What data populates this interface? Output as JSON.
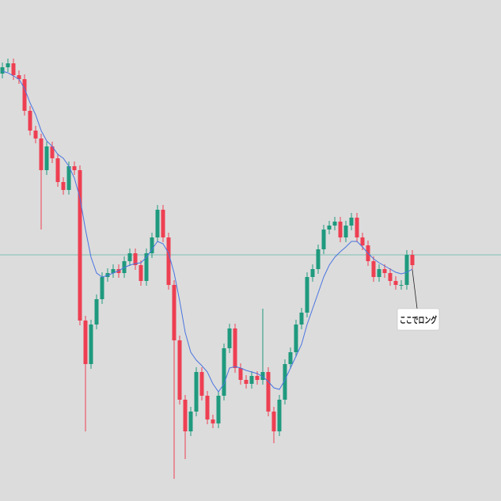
{
  "chart_data": {
    "type": "candlestick",
    "ylim": [
      0,
      633
    ],
    "colors": {
      "up": "#1f9a7e",
      "down": "#ee3f52",
      "ma": "#4a74e0",
      "hline": "#5fb8a8"
    },
    "open": [
      540,
      548,
      553,
      538,
      533,
      493,
      468,
      458,
      418,
      448,
      433,
      403,
      393,
      423,
      418,
      228,
      173,
      223,
      255,
      283,
      288,
      293,
      288,
      303,
      313,
      298,
      278,
      313,
      333,
      368,
      333,
      273,
      203,
      128,
      88,
      113,
      163,
      133,
      103,
      98,
      133,
      193,
      218,
      168,
      153,
      148,
      158,
      153,
      163,
      113,
      88,
      128,
      173,
      188,
      223,
      238,
      283,
      293,
      318,
      343,
      348,
      353,
      333,
      348,
      358,
      333,
      323,
      303,
      283,
      293,
      288,
      278,
      273,
      273,
      311
    ],
    "high": [
      554,
      559,
      559,
      544,
      539,
      499,
      474,
      464,
      454,
      454,
      439,
      409,
      429,
      429,
      424,
      234,
      229,
      261,
      289,
      294,
      299,
      299,
      309,
      319,
      319,
      304,
      319,
      339,
      374,
      374,
      339,
      279,
      209,
      134,
      119,
      169,
      169,
      139,
      109,
      139,
      199,
      224,
      224,
      174,
      159,
      164,
      164,
      243,
      169,
      119,
      134,
      179,
      194,
      229,
      244,
      289,
      299,
      324,
      349,
      354,
      359,
      359,
      354,
      364,
      364,
      339,
      329,
      309,
      299,
      299,
      294,
      284,
      279,
      317,
      317
    ],
    "low": [
      534,
      542,
      532,
      527,
      487,
      462,
      452,
      343,
      412,
      427,
      397,
      387,
      387,
      412,
      222,
      88,
      167,
      217,
      249,
      277,
      282,
      282,
      282,
      297,
      292,
      272,
      272,
      307,
      327,
      327,
      267,
      28,
      122,
      53,
      82,
      107,
      127,
      97,
      92,
      92,
      127,
      187,
      162,
      147,
      142,
      142,
      147,
      147,
      107,
      73,
      82,
      122,
      167,
      182,
      217,
      232,
      277,
      287,
      312,
      337,
      342,
      327,
      327,
      342,
      327,
      317,
      297,
      277,
      277,
      282,
      272,
      267,
      267,
      267,
      292
    ],
    "close": [
      548,
      553,
      538,
      533,
      493,
      468,
      458,
      418,
      448,
      433,
      403,
      393,
      423,
      418,
      228,
      173,
      223,
      255,
      283,
      288,
      293,
      288,
      303,
      313,
      298,
      278,
      313,
      333,
      368,
      333,
      273,
      203,
      128,
      88,
      113,
      163,
      133,
      103,
      98,
      133,
      193,
      218,
      168,
      153,
      148,
      158,
      153,
      163,
      113,
      88,
      128,
      173,
      188,
      223,
      238,
      283,
      293,
      318,
      343,
      348,
      353,
      333,
      348,
      358,
      333,
      323,
      303,
      283,
      293,
      288,
      278,
      273,
      273,
      311,
      298
    ],
    "ma": [
      543,
      541,
      537,
      533,
      521,
      503,
      488,
      468,
      455,
      448,
      438,
      433,
      423,
      408,
      383,
      343,
      308,
      288,
      283,
      285,
      288,
      291,
      295,
      298,
      300,
      301,
      308,
      318,
      328,
      325,
      313,
      288,
      253,
      213,
      188,
      178,
      171,
      163,
      148,
      138,
      148,
      168,
      170,
      168,
      165,
      163,
      161,
      157,
      151,
      143,
      141,
      153,
      168,
      183,
      198,
      223,
      243,
      263,
      283,
      298,
      308,
      315,
      321,
      328,
      328,
      321,
      313,
      306,
      301,
      297,
      293,
      289,
      287,
      289,
      293
    ],
    "hline": 311,
    "annotation": "ここでロング"
  }
}
